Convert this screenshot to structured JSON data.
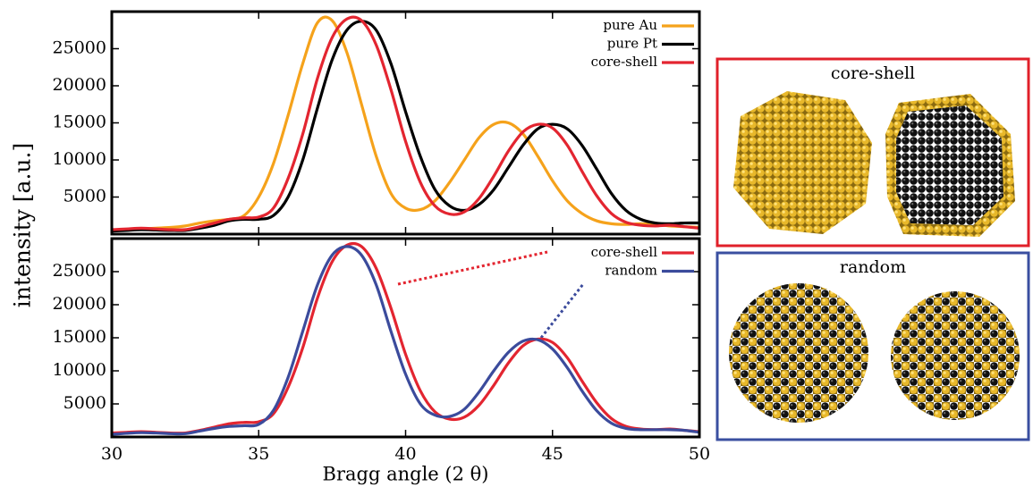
{
  "chart_data": [
    {
      "type": "line",
      "y_label": "intensity [a.u.]",
      "x": [
        30,
        30.5,
        31,
        31.5,
        32,
        32.5,
        33,
        33.5,
        34,
        34.5,
        35,
        35.5,
        36,
        36.5,
        37,
        37.5,
        38,
        38.5,
        39,
        39.5,
        40,
        40.5,
        41,
        41.5,
        42,
        42.5,
        43,
        43.5,
        44,
        44.5,
        45,
        45.5,
        46,
        46.5,
        47,
        47.5,
        48,
        48.5,
        49,
        49.5,
        50
      ],
      "xlim": [
        30,
        50
      ],
      "xticks": [
        30,
        35,
        40,
        45,
        50
      ],
      "ylim": [
        0,
        30000
      ],
      "yticks": [
        5000,
        10000,
        15000,
        20000,
        25000
      ],
      "legend": "upper right",
      "series": [
        {
          "name": "pure Au",
          "color": "#f5a21b",
          "values": [
            500,
            600,
            700,
            800,
            900,
            1100,
            1500,
            1800,
            2000,
            2500,
            5000,
            9500,
            16000,
            23000,
            28500,
            28800,
            24500,
            17500,
            10500,
            5500,
            3500,
            3300,
            4500,
            7000,
            10000,
            13000,
            14800,
            15000,
            13500,
            10500,
            7200,
            4500,
            2800,
            1800,
            1400,
            1300,
            1400,
            1300,
            1100,
            1000,
            900
          ]
        },
        {
          "name": "pure Pt",
          "color": "#000000",
          "values": [
            400,
            500,
            600,
            550,
            500,
            500,
            800,
            1200,
            1800,
            2000,
            2000,
            2500,
            5000,
            10000,
            17000,
            23500,
            27500,
            28700,
            27500,
            23000,
            16500,
            10500,
            6000,
            3800,
            3200,
            4000,
            6000,
            9000,
            12000,
            14200,
            14800,
            14200,
            12000,
            8800,
            5500,
            3200,
            2000,
            1500,
            1400,
            1500,
            1500
          ]
        },
        {
          "name": "core-shell",
          "color": "#e32530",
          "values": [
            600,
            700,
            800,
            700,
            600,
            600,
            1000,
            1500,
            2000,
            2200,
            2300,
            3500,
            7500,
            13500,
            21000,
            26500,
            29000,
            28800,
            25500,
            19500,
            12500,
            7000,
            3800,
            2700,
            3000,
            4800,
            7800,
            11200,
            13800,
            14800,
            14300,
            12000,
            8500,
            5200,
            2800,
            1600,
            1200,
            1100,
            1200,
            1000,
            800
          ]
        }
      ]
    },
    {
      "type": "line",
      "x_label": "Bragg angle (2 θ)",
      "x": [
        30,
        30.5,
        31,
        31.5,
        32,
        32.5,
        33,
        33.5,
        34,
        34.5,
        35,
        35.5,
        36,
        36.5,
        37,
        37.5,
        38,
        38.5,
        39,
        39.5,
        40,
        40.5,
        41,
        41.5,
        42,
        42.5,
        43,
        43.5,
        44,
        44.5,
        45,
        45.5,
        46,
        46.5,
        47,
        47.5,
        48,
        48.5,
        49,
        49.5,
        50
      ],
      "xlim": [
        30,
        50
      ],
      "xticks": [
        30,
        35,
        40,
        45,
        50
      ],
      "ylim": [
        0,
        30000
      ],
      "yticks": [
        5000,
        10000,
        15000,
        20000,
        25000
      ],
      "legend": "upper right",
      "series": [
        {
          "name": "core-shell",
          "color": "#e32530",
          "values": [
            600,
            700,
            800,
            700,
            600,
            600,
            1000,
            1500,
            2000,
            2200,
            2300,
            3500,
            7500,
            13500,
            21000,
            26500,
            29000,
            28800,
            25500,
            19500,
            12500,
            7000,
            3800,
            2700,
            3000,
            4800,
            7800,
            11200,
            13800,
            14800,
            14300,
            12000,
            8500,
            5200,
            2800,
            1600,
            1200,
            1100,
            1200,
            1000,
            800
          ]
        },
        {
          "name": "random",
          "color": "#3b4b9c",
          "values": [
            400,
            550,
            650,
            600,
            500,
            500,
            900,
            1300,
            1600,
            1700,
            1900,
            4000,
            9000,
            16000,
            23000,
            27500,
            28800,
            27500,
            23000,
            16000,
            9500,
            5000,
            3300,
            3100,
            4200,
            6800,
            10000,
            12800,
            14500,
            14700,
            13300,
            10500,
            7000,
            4000,
            2100,
            1300,
            1100,
            1100,
            1100,
            1000,
            700
          ]
        }
      ]
    }
  ],
  "insets": [
    {
      "label": "core-shell",
      "color": "#e0202a"
    },
    {
      "label": "random",
      "color": "#3a4fa0"
    }
  ]
}
